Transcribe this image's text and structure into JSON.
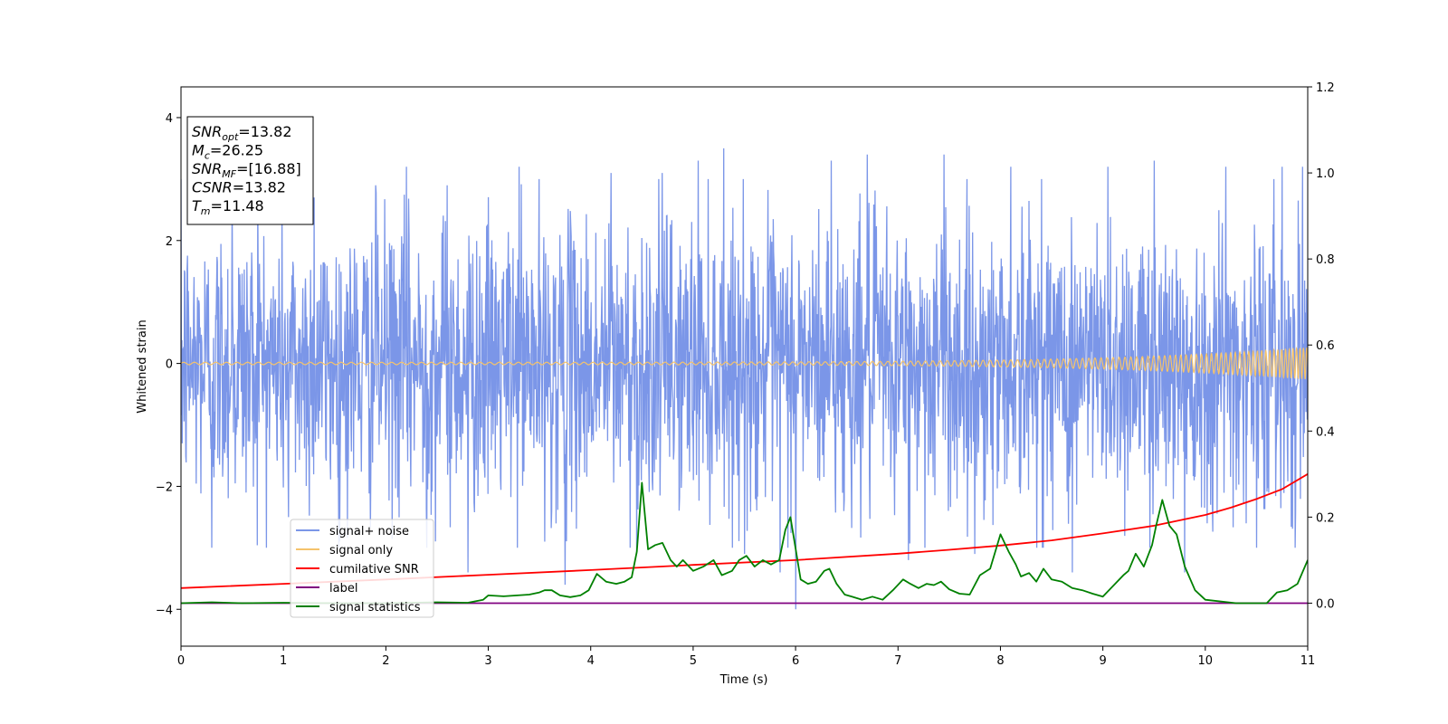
{
  "chart_data": {
    "type": "line",
    "xlabel": "Time (s)",
    "ylabel": "Whitened strain",
    "xlim": [
      0,
      11
    ],
    "ylim": [
      -4.6,
      4.5
    ],
    "y2lim": [
      -0.1,
      1.2
    ],
    "x_ticks": [
      "0",
      "1",
      "2",
      "3",
      "4",
      "5",
      "6",
      "7",
      "8",
      "9",
      "10",
      "11"
    ],
    "y_ticks": [
      "4",
      "2",
      "0",
      "−2",
      "−4"
    ],
    "y_tick_values": [
      4,
      2,
      0,
      -2,
      -4
    ],
    "y2_ticks": [
      "1.2",
      "1.0",
      "0.8",
      "0.6",
      "0.4",
      "0.2",
      "0.0"
    ],
    "y2_tick_values": [
      1.2,
      1.0,
      0.8,
      0.6,
      0.4,
      0.2,
      0.0
    ],
    "grid": false,
    "legend_position": "lower-left",
    "info_box": [
      {
        "name": "SNR",
        "sub": "opt",
        "value": "=13.82"
      },
      {
        "name": "M",
        "sub": "c",
        "value": "=26.25"
      },
      {
        "name": "SNR",
        "sub": "MF",
        "value": "=[16.88]"
      },
      {
        "name": "CSNR",
        "sub": "",
        "value": "=13.82"
      },
      {
        "name": "T",
        "sub": "m",
        "value": "=11.48"
      }
    ],
    "series": [
      {
        "name": "signal+ noise",
        "color": "#7b96e8",
        "axis": "left",
        "kind": "noise",
        "noise_sigma": 1.15,
        "spike_times": [
          0.3,
          0.5,
          0.75,
          1.05,
          1.3,
          1.55,
          1.9,
          2.2,
          2.4,
          2.6,
          2.8,
          3.3,
          3.55,
          3.75,
          4.2,
          4.45,
          4.7,
          5.05,
          5.3,
          5.5,
          5.85,
          6.0,
          6.35,
          6.7,
          7.1,
          7.45,
          7.75,
          8.1,
          8.4,
          8.7,
          9.05,
          9.5,
          9.8,
          10.2,
          10.5,
          10.75,
          10.95
        ],
        "spike_values": [
          -3.0,
          2.7,
          2.8,
          -2.5,
          2.7,
          -2.9,
          2.9,
          3.2,
          -3.0,
          2.9,
          -3.4,
          3.2,
          -2.9,
          -3.6,
          3.1,
          -3.1,
          3.1,
          3.3,
          3.5,
          -3.1,
          -3.4,
          -4.0,
          3.3,
          3.4,
          -3.2,
          3.4,
          -3.1,
          3.2,
          3.0,
          -3.4,
          3.2,
          3.3,
          -3.4,
          3.2,
          -3.0,
          3.2,
          3.2
        ]
      },
      {
        "name": "signal only",
        "color": "#f5c36b",
        "axis": "left",
        "kind": "chirp",
        "tc": 11.48,
        "f0": 9.5,
        "amp_start": 0.02,
        "amp_end": 0.26
      },
      {
        "name": "cumilative SNR",
        "color": "#ff0000",
        "axis": "right",
        "x": [
          0,
          1,
          2,
          3,
          4,
          5,
          6,
          7,
          7.5,
          8,
          8.5,
          9,
          9.5,
          10,
          10.25,
          10.5,
          10.75,
          11
        ],
        "y": [
          0.035,
          0.045,
          0.055,
          0.066,
          0.077,
          0.089,
          0.1,
          0.115,
          0.124,
          0.134,
          0.146,
          0.162,
          0.18,
          0.205,
          0.222,
          0.242,
          0.265,
          0.3
        ]
      },
      {
        "name": "label",
        "color": "#800080",
        "axis": "right",
        "x": [
          0,
          11
        ],
        "y": [
          0.0,
          0.0
        ]
      },
      {
        "name": "signal statistics",
        "color": "#008000",
        "axis": "right",
        "x": [
          0,
          0.3,
          0.6,
          1,
          1.5,
          2,
          2.5,
          2.8,
          2.95,
          3.0,
          3.15,
          3.4,
          3.5,
          3.55,
          3.62,
          3.7,
          3.8,
          3.9,
          3.98,
          4.06,
          4.15,
          4.25,
          4.33,
          4.4,
          4.45,
          4.5,
          4.56,
          4.63,
          4.7,
          4.78,
          4.84,
          4.9,
          5.0,
          5.1,
          5.2,
          5.28,
          5.38,
          5.45,
          5.52,
          5.6,
          5.68,
          5.76,
          5.84,
          5.9,
          5.95,
          6.05,
          6.12,
          6.2,
          6.28,
          6.33,
          6.4,
          6.48,
          6.55,
          6.65,
          6.75,
          6.85,
          6.95,
          7.05,
          7.12,
          7.2,
          7.28,
          7.35,
          7.42,
          7.5,
          7.6,
          7.7,
          7.8,
          7.9,
          8.0,
          8.08,
          8.15,
          8.2,
          8.28,
          8.35,
          8.42,
          8.5,
          8.6,
          8.7,
          8.8,
          8.9,
          9.0,
          9.1,
          9.2,
          9.25,
          9.32,
          9.4,
          9.48,
          9.52,
          9.58,
          9.65,
          9.72,
          9.8,
          9.9,
          10.0,
          10.3,
          10.5,
          10.6,
          10.7,
          10.8,
          10.9,
          11.0
        ],
        "y": [
          0.0,
          0.002,
          0.0,
          0.001,
          0.0,
          0.0,
          0.002,
          0.001,
          0.008,
          0.018,
          0.016,
          0.02,
          0.025,
          0.03,
          0.03,
          0.018,
          0.014,
          0.018,
          0.03,
          0.068,
          0.05,
          0.045,
          0.05,
          0.06,
          0.12,
          0.28,
          0.125,
          0.135,
          0.14,
          0.1,
          0.085,
          0.1,
          0.075,
          0.085,
          0.1,
          0.065,
          0.075,
          0.1,
          0.11,
          0.085,
          0.1,
          0.09,
          0.1,
          0.17,
          0.2,
          0.055,
          0.045,
          0.05,
          0.075,
          0.08,
          0.045,
          0.02,
          0.015,
          0.008,
          0.015,
          0.008,
          0.03,
          0.055,
          0.045,
          0.035,
          0.045,
          0.042,
          0.05,
          0.032,
          0.022,
          0.02,
          0.065,
          0.08,
          0.16,
          0.12,
          0.09,
          0.062,
          0.07,
          0.05,
          0.08,
          0.055,
          0.05,
          0.035,
          0.03,
          0.022,
          0.015,
          0.04,
          0.065,
          0.075,
          0.115,
          0.085,
          0.135,
          0.18,
          0.24,
          0.18,
          0.16,
          0.085,
          0.03,
          0.008,
          0.0,
          0.0,
          0.0,
          0.025,
          0.03,
          0.045,
          0.1
        ]
      }
    ]
  }
}
